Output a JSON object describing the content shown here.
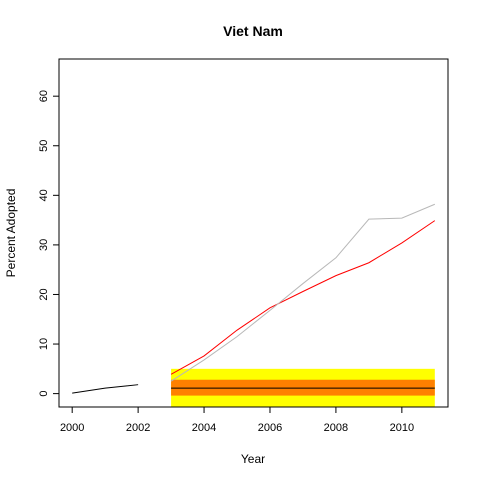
{
  "chart_data": {
    "type": "line",
    "title": "Viet Nam",
    "xlabel": "Year",
    "ylabel": "Percent Adopted",
    "xlim": [
      1999.6,
      2011.4
    ],
    "ylim": [
      -2.7,
      67.5
    ],
    "x_ticks": [
      2000,
      2002,
      2004,
      2006,
      2008,
      2010
    ],
    "y_ticks": [
      0,
      10,
      20,
      30,
      40,
      50,
      60
    ],
    "grid": false,
    "legend": "none",
    "bands": [
      {
        "name": "outer",
        "x": [
          2003,
          2011
        ],
        "y": [
          -2.7,
          5.0
        ],
        "color": "#ffff00"
      },
      {
        "name": "inner",
        "x": [
          2003,
          2011
        ],
        "y": [
          -0.4,
          2.8
        ],
        "color": "#ff8000"
      }
    ],
    "series": [
      {
        "x": [
          2000,
          2001,
          2002
        ],
        "values": [
          0.1,
          1.1,
          1.8
        ],
        "color": "#000000"
      },
      {
        "x": [
          2003,
          2011
        ],
        "values": [
          1.1,
          1.1
        ],
        "color": "#000000"
      },
      {
        "x": [
          2003,
          2004,
          2005,
          2006,
          2007,
          2008,
          2009,
          2010,
          2011
        ],
        "values": [
          3.9,
          7.6,
          12.8,
          17.3,
          20.6,
          23.8,
          26.4,
          30.4,
          34.9
        ],
        "color": "#ff0000"
      },
      {
        "x": [
          2003,
          2004,
          2005,
          2006,
          2007,
          2008,
          2009,
          2010,
          2011
        ],
        "values": [
          2.5,
          6.8,
          11.5,
          16.8,
          22.2,
          27.4,
          35.2,
          35.4,
          38.2
        ],
        "color": "#b8b8b8"
      }
    ]
  }
}
